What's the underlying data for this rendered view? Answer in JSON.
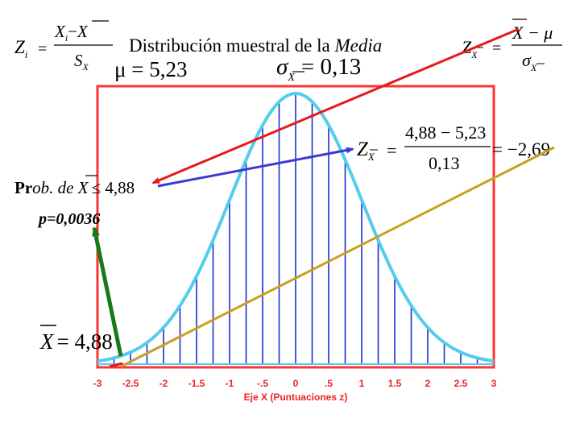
{
  "title": {
    "prefix": "Distribución muestral de la ",
    "italic": "Media"
  },
  "formulas": {
    "zi": {
      "lhs": "Z",
      "lhs_sub": "i",
      "num_a": "X",
      "num_a_sub": "i",
      "minus": "−",
      "num_b": "X",
      "den": "S",
      "den_sub": "X",
      "eq": "="
    },
    "zx_general": {
      "lhs": "Z",
      "lhs_sub": "X",
      "num": "X − μ",
      "den": "σ",
      "den_sub": "X",
      "eq": "="
    },
    "mu": "μ = 5,23",
    "sigma": {
      "symbol": "σ",
      "sub": "X",
      "rest": "= 0,13"
    },
    "zx_value": {
      "lhs": "Z",
      "lhs_sub": "X",
      "num": "4,88 − 5,23",
      "den": "0,13",
      "result": "= −2,69",
      "eq": "="
    },
    "prob": {
      "bold": "Pr",
      "italic": "ob. de ",
      "var": "X",
      "rest": "≤ 4,88"
    },
    "p_value": "p=0,0036",
    "xbar_value": {
      "var": "X",
      "rest": "= 4,88"
    }
  },
  "chart_data": {
    "type": "area",
    "title": "",
    "xlabel": "Eje X (Puntuaciones z)",
    "ylabel": "",
    "xlim": [
      -3,
      3
    ],
    "x_ticks": [
      "-3",
      "-2.5",
      "-2",
      "-1.5",
      "-1",
      "-.5",
      "0",
      ".5",
      "1",
      "1.5",
      "2",
      "2.5",
      "3"
    ],
    "x_tick_values": [
      -3,
      -2.5,
      -2,
      -1.5,
      -1,
      -0.5,
      0,
      0.5,
      1,
      1.5,
      2,
      2.5,
      3
    ],
    "curve": "standard normal density",
    "grid": false,
    "colors": {
      "frame": "#ff3333",
      "curve": "#55ccee",
      "hatch": "#1a2fd0",
      "axis_label": "#ee2222"
    }
  },
  "arrows": {
    "red": "#e51a1a",
    "blue": "#3a3ad0",
    "gold": "#c8a01e",
    "green": "#167a16"
  }
}
